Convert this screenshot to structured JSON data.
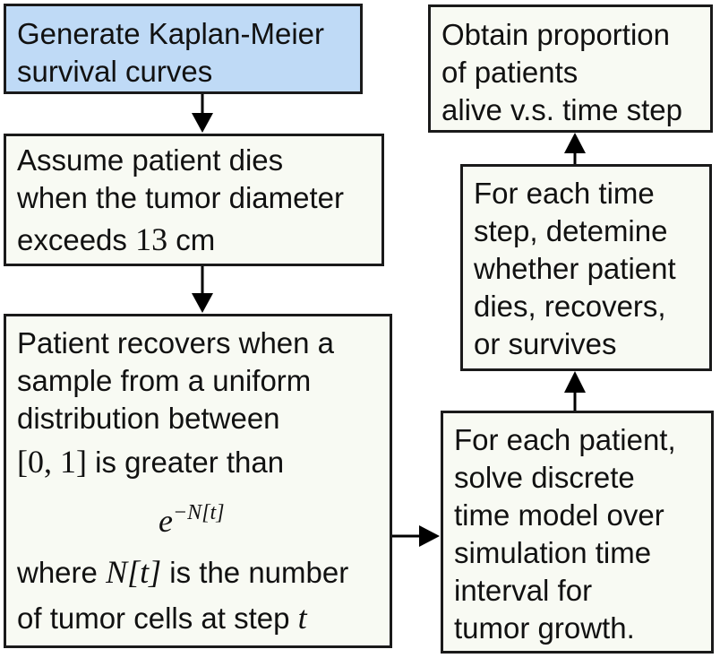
{
  "colors": {
    "start_fill": "#bfdaf6",
    "box_fill": "#f8faf3",
    "border": "#1a1a1a"
  },
  "box1": {
    "lines": [
      "Generate Kaplan-Meier",
      "survival curves"
    ]
  },
  "box2": {
    "line1": "Assume patient dies",
    "line2": "when the tumor diameter",
    "line3_pre": "exceeds ",
    "line3_num": "13",
    "line3_unit": " cm"
  },
  "box3": {
    "line1": "Patient recovers when a",
    "line2": "sample from a uniform",
    "line3": "distribution between",
    "interval": "[0, 1]",
    "line4_post": " is greater than",
    "formula_base": "e",
    "formula_exp": "−N[t]",
    "line6_pre": "where ",
    "line6_var": "N[t]",
    "line6_post": " is the number",
    "line7_pre": "of tumor cells at step ",
    "line7_var": "t"
  },
  "box4": {
    "lines": [
      "For each patient,",
      "solve discrete",
      "time model over",
      "simulation time",
      "interval for",
      "tumor growth."
    ]
  },
  "box5": {
    "lines": [
      "For each time",
      "step, detemine",
      "whether patient",
      "dies, recovers,",
      "or survives"
    ]
  },
  "box6": {
    "lines": [
      "Obtain proportion",
      "of patients",
      "alive v.s. time step"
    ]
  }
}
